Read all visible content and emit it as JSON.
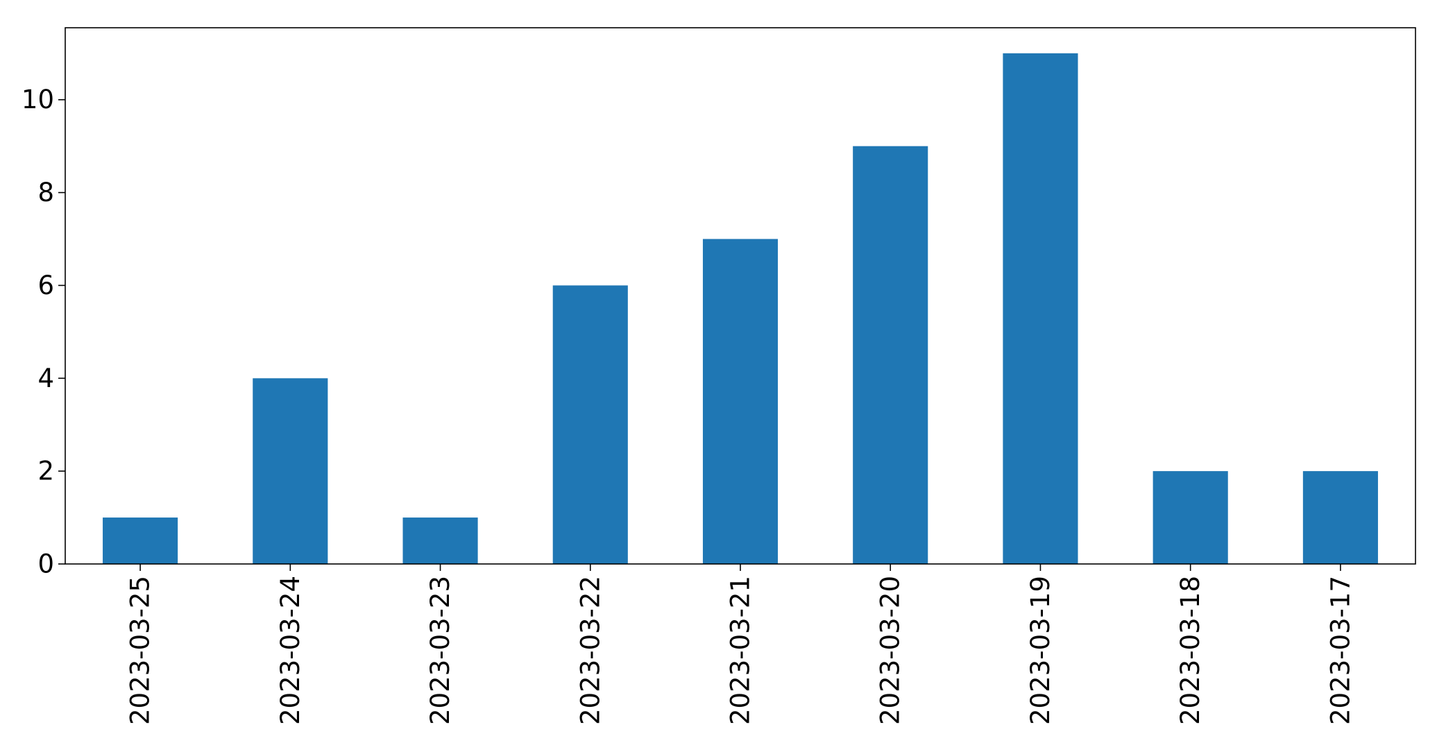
{
  "chart_data": {
    "type": "bar",
    "categories": [
      "2023-03-25",
      "2023-03-24",
      "2023-03-23",
      "2023-03-22",
      "2023-03-21",
      "2023-03-20",
      "2023-03-19",
      "2023-03-18",
      "2023-03-17"
    ],
    "values": [
      1,
      4,
      1,
      6,
      7,
      9,
      11,
      2,
      2
    ],
    "title": "",
    "xlabel": "",
    "ylabel": "",
    "ylim": [
      0,
      11.55
    ],
    "yticks": [
      0,
      2,
      4,
      6,
      8,
      10
    ],
    "grid": false,
    "legend": "none",
    "bar_color": "#1f77b4"
  }
}
